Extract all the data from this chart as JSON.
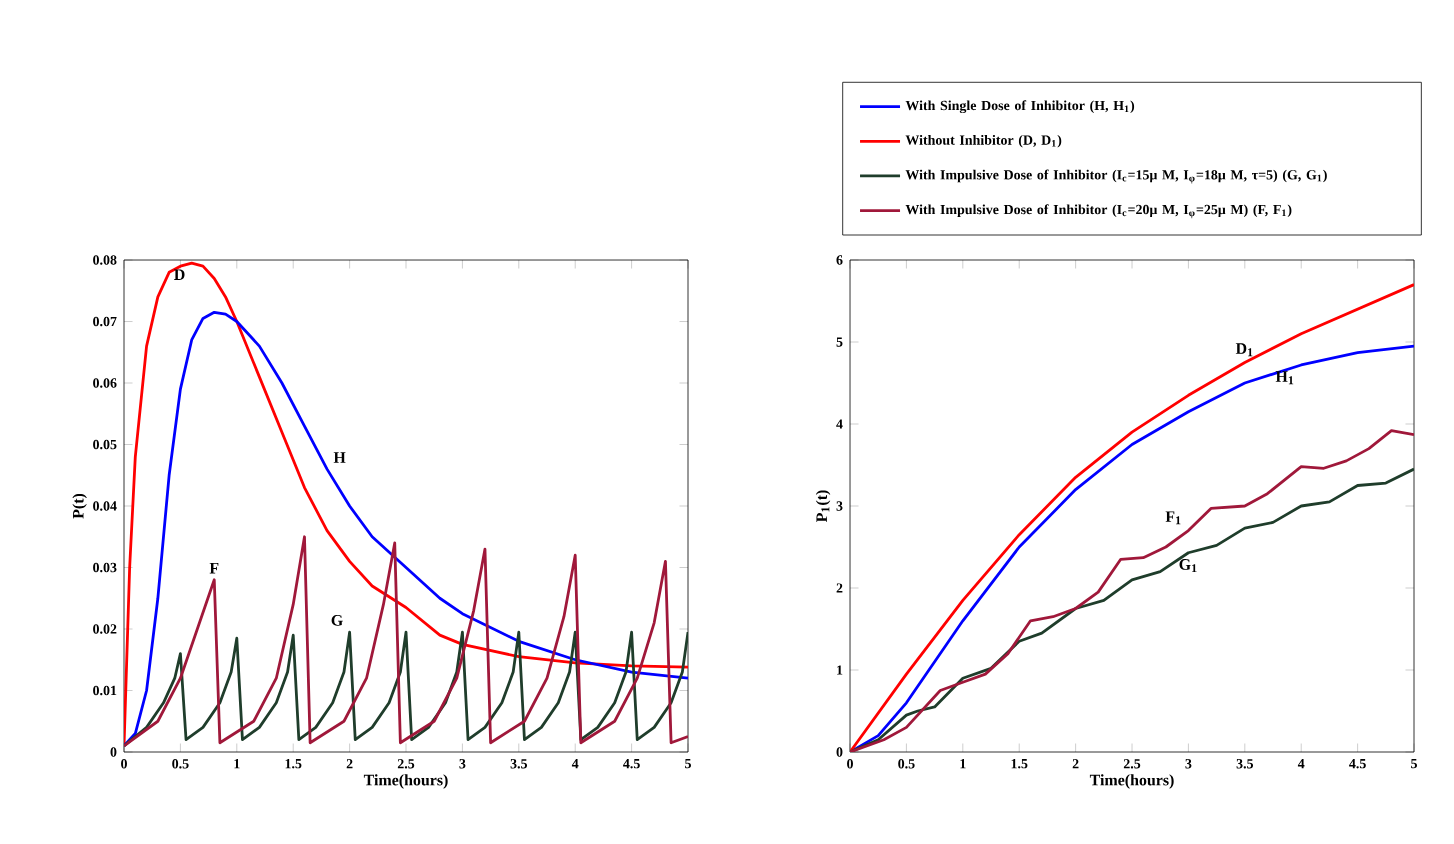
{
  "chart_data": [
    {
      "type": "line",
      "xlabel": "Time(hours)",
      "ylabel": "P(t)",
      "xlim": [
        0,
        5
      ],
      "ylim": [
        0,
        0.08
      ],
      "xticks": [
        0,
        0.5,
        1,
        1.5,
        2,
        2.5,
        3,
        3.5,
        4,
        4.5,
        5
      ],
      "yticks": [
        0,
        0.01,
        0.02,
        0.03,
        0.04,
        0.05,
        0.06,
        0.07,
        0.08
      ],
      "series": [
        {
          "color": "#ff0000",
          "x": [
            0,
            0.05,
            0.1,
            0.2,
            0.3,
            0.4,
            0.5,
            0.6,
            0.7,
            0.8,
            0.9,
            1.0,
            1.2,
            1.4,
            1.6,
            1.8,
            2.0,
            2.2,
            2.5,
            2.8,
            3.0,
            3.5,
            4.0,
            4.5,
            5
          ],
          "values": [
            0.001,
            0.03,
            0.048,
            0.066,
            0.074,
            0.078,
            0.079,
            0.0795,
            0.079,
            0.077,
            0.074,
            0.07,
            0.061,
            0.052,
            0.043,
            0.036,
            0.031,
            0.027,
            0.0235,
            0.019,
            0.0175,
            0.0155,
            0.0145,
            0.014,
            0.0138
          ]
        },
        {
          "color": "#0000ff",
          "x": [
            0,
            0.1,
            0.2,
            0.3,
            0.4,
            0.5,
            0.6,
            0.7,
            0.8,
            0.9,
            1.0,
            1.2,
            1.4,
            1.6,
            1.8,
            2.0,
            2.2,
            2.5,
            2.8,
            3.0,
            3.5,
            4,
            4.5,
            5
          ],
          "values": [
            0.001,
            0.003,
            0.01,
            0.025,
            0.045,
            0.059,
            0.067,
            0.0705,
            0.0715,
            0.0712,
            0.07,
            0.066,
            0.06,
            0.053,
            0.046,
            0.04,
            0.035,
            0.03,
            0.025,
            0.0225,
            0.018,
            0.015,
            0.013,
            0.012
          ]
        },
        {
          "color": "#1f3d2b",
          "x": [
            0,
            0.2,
            0.35,
            0.45,
            0.5,
            0.55,
            0.7,
            0.85,
            0.95,
            1.0,
            1.05,
            1.2,
            1.35,
            1.45,
            1.5,
            1.55,
            1.7,
            1.85,
            1.95,
            2.0,
            2.05,
            2.2,
            2.35,
            2.45,
            2.5,
            2.55,
            2.7,
            2.85,
            2.95,
            3.0,
            3.05,
            3.2,
            3.35,
            3.45,
            3.5,
            3.55,
            3.7,
            3.85,
            3.95,
            4.0,
            4.05,
            4.2,
            4.35,
            4.45,
            4.5,
            4.55,
            4.7,
            4.85,
            4.95,
            5
          ],
          "values": [
            0.001,
            0.004,
            0.008,
            0.012,
            0.016,
            0.002,
            0.004,
            0.008,
            0.013,
            0.0185,
            0.002,
            0.004,
            0.008,
            0.013,
            0.019,
            0.002,
            0.004,
            0.008,
            0.013,
            0.0195,
            0.002,
            0.004,
            0.008,
            0.013,
            0.0195,
            0.002,
            0.004,
            0.008,
            0.013,
            0.0195,
            0.002,
            0.004,
            0.008,
            0.013,
            0.0195,
            0.002,
            0.004,
            0.008,
            0.013,
            0.0195,
            0.002,
            0.004,
            0.008,
            0.013,
            0.0195,
            0.002,
            0.004,
            0.008,
            0.013,
            0.0195
          ]
        },
        {
          "color": "#a0183a",
          "x": [
            0,
            0.3,
            0.5,
            0.65,
            0.8,
            0.85,
            1.15,
            1.35,
            1.5,
            1.6,
            1.65,
            1.95,
            2.15,
            2.3,
            2.4,
            2.45,
            2.75,
            2.95,
            3.1,
            3.2,
            3.25,
            3.55,
            3.75,
            3.9,
            4.0,
            4.05,
            4.35,
            4.55,
            4.7,
            4.8,
            4.85,
            5
          ],
          "values": [
            0.001,
            0.005,
            0.012,
            0.02,
            0.028,
            0.0015,
            0.005,
            0.012,
            0.024,
            0.035,
            0.0015,
            0.005,
            0.012,
            0.024,
            0.034,
            0.0015,
            0.005,
            0.012,
            0.023,
            0.033,
            0.0015,
            0.005,
            0.012,
            0.022,
            0.032,
            0.0015,
            0.005,
            0.012,
            0.021,
            0.031,
            0.0015,
            0.0025
          ]
        }
      ],
      "annotations": [
        {
          "text": "D",
          "x": 0.6,
          "y": 0.0795
        },
        {
          "text": "H",
          "x": 1.8,
          "y": 0.046
        },
        {
          "text": "F",
          "x": 0.8,
          "y": 0.028
        },
        {
          "text": "G",
          "x": 2.0,
          "y": 0.0195
        }
      ]
    },
    {
      "type": "line",
      "xlabel": "Time(hours)",
      "ylabel": "P$_{1}$(t)",
      "xlim": [
        0,
        5
      ],
      "ylim": [
        0,
        6
      ],
      "xticks": [
        0,
        0.5,
        1,
        1.5,
        2,
        2.5,
        3,
        3.5,
        4,
        4.5,
        5
      ],
      "yticks": [
        0,
        1,
        2,
        3,
        4,
        5,
        6
      ],
      "legend": "top",
      "series": [
        {
          "name": "With Single Dose of Inhibitor (H, H$_{1}$)",
          "color": "#0000ff",
          "x": [
            0,
            0.25,
            0.5,
            1,
            1.5,
            2,
            2.5,
            3,
            3.5,
            4,
            4.5,
            5
          ],
          "values": [
            0,
            0.2,
            0.6,
            1.6,
            2.5,
            3.2,
            3.75,
            4.15,
            4.5,
            4.72,
            4.87,
            4.95
          ]
        },
        {
          "name": "Without Inhibitor (D, D$_{1}$)",
          "color": "#ff0000",
          "x": [
            0,
            0.5,
            1,
            1.5,
            2,
            2.5,
            3,
            3.5,
            4,
            4.5,
            5
          ],
          "values": [
            0,
            0.95,
            1.85,
            2.65,
            3.35,
            3.9,
            4.35,
            4.75,
            5.1,
            5.4,
            5.7
          ]
        },
        {
          "name": "With Impulsive Dose of Inhibitor (I$_{c}$=15μ M, I$_{φ}$=18μ M, τ=5) (G, G$_{1}$)",
          "color": "#1f3d2b",
          "x": [
            0,
            0.25,
            0.5,
            0.6,
            0.75,
            1.0,
            1.25,
            1.5,
            1.7,
            2.0,
            2.25,
            2.5,
            2.75,
            3.0,
            3.25,
            3.5,
            3.75,
            4.0,
            4.25,
            4.5,
            4.75,
            5
          ],
          "values": [
            0,
            0.15,
            0.45,
            0.5,
            0.55,
            0.9,
            1.02,
            1.35,
            1.45,
            1.75,
            1.85,
            2.1,
            2.2,
            2.43,
            2.52,
            2.73,
            2.8,
            3.0,
            3.05,
            3.25,
            3.28,
            3.45
          ]
        },
        {
          "name": "With Impulsive Dose of Inhibitor (I$_{c}$=20μ M, I$_{φ}$=25μ M) (F, F$_{1}$)",
          "color": "#a0183a",
          "x": [
            0,
            0.3,
            0.5,
            0.8,
            1.0,
            1.2,
            1.4,
            1.6,
            1.8,
            2.0,
            2.2,
            2.4,
            2.6,
            2.8,
            3.0,
            3.2,
            3.5,
            3.7,
            4.0,
            4.2,
            4.4,
            4.6,
            4.8,
            5
          ],
          "values": [
            0,
            0.15,
            0.3,
            0.75,
            0.85,
            0.95,
            1.2,
            1.6,
            1.65,
            1.75,
            1.95,
            2.35,
            2.37,
            2.5,
            2.7,
            2.97,
            3.0,
            3.15,
            3.48,
            3.46,
            3.55,
            3.7,
            3.92,
            3.87
          ]
        }
      ],
      "annotations": [
        {
          "text": "D$_{1}$",
          "x": 3.5,
          "y": 4.75
        },
        {
          "text": "H$_{1}$",
          "x": 4,
          "y": 4.72
        },
        {
          "text": "F$_{1}$",
          "x": 3.0,
          "y": 2.7
        },
        {
          "text": "G$_{1}$",
          "x": 3.0,
          "y": 2.43
        }
      ]
    }
  ]
}
